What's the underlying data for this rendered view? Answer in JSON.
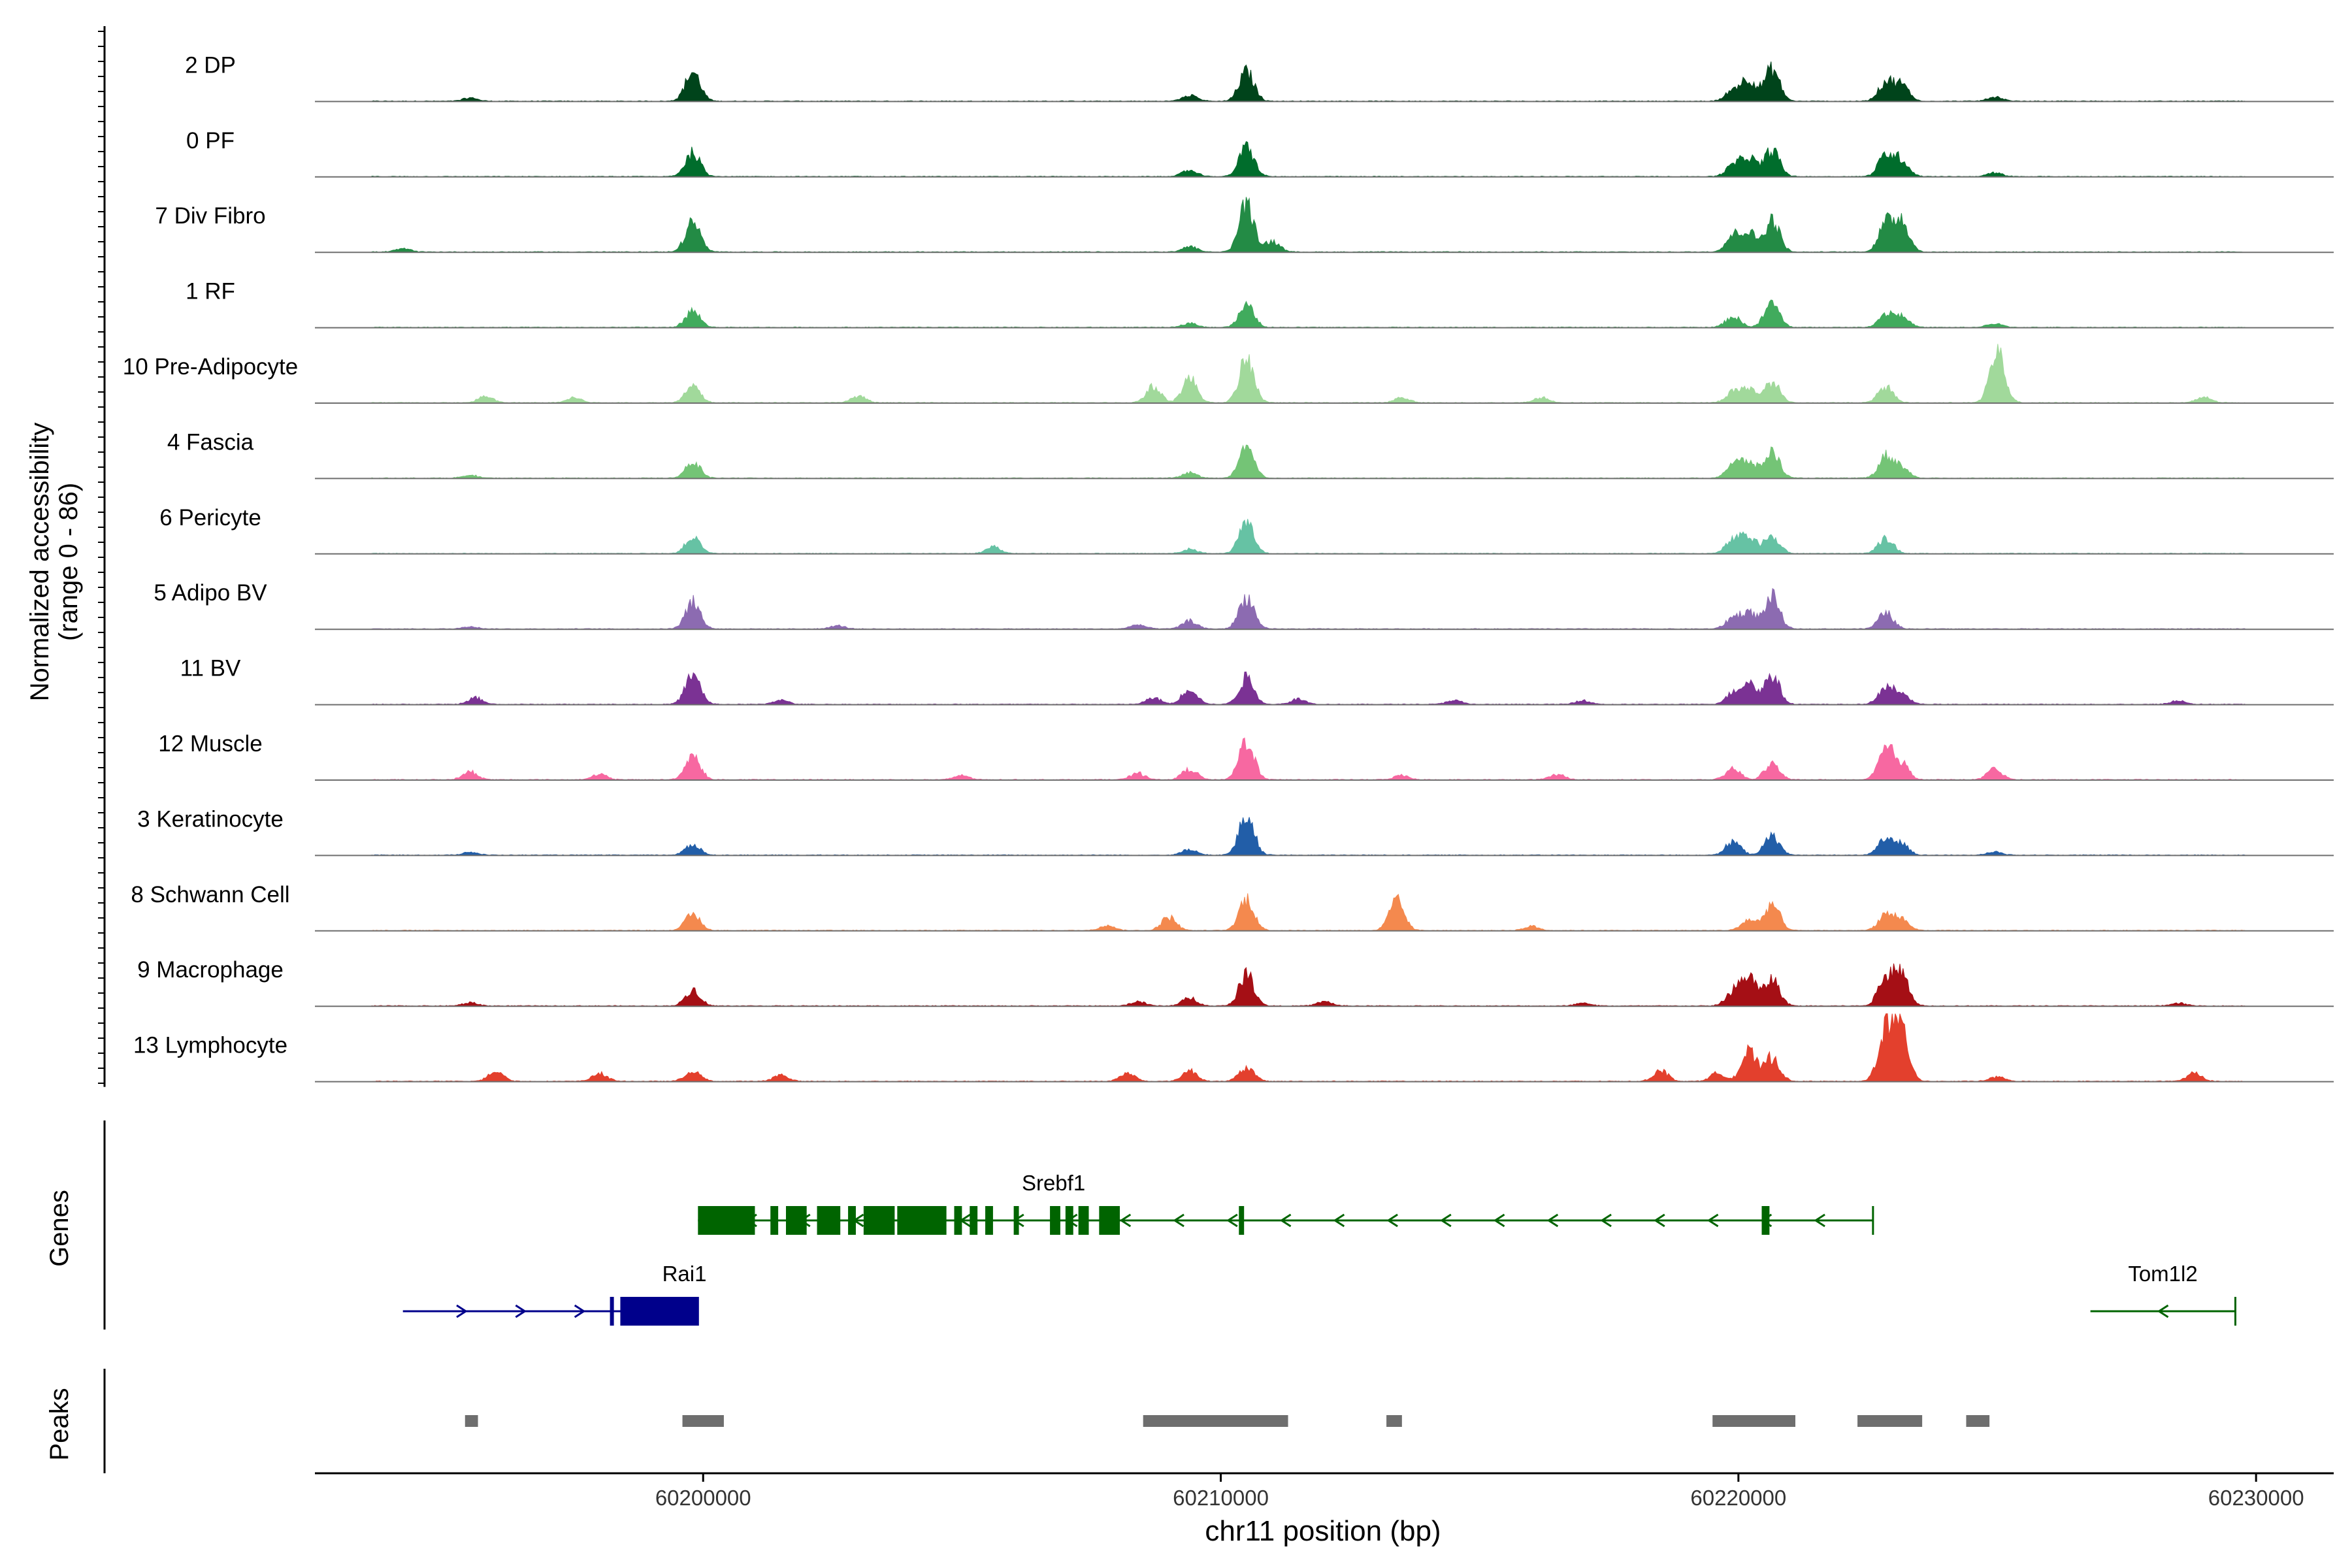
{
  "chart_data": {
    "type": "area",
    "title": "",
    "chromosome": "chr11",
    "xlabel": "chr11 position (bp)",
    "ylabel_line1": "Normalized accessibility",
    "ylabel_line2": "(range 0 - 86)",
    "xlim": [
      60192500,
      60231500
    ],
    "y_range": [
      0,
      86
    ],
    "x_ticks": [
      60200000,
      60210000,
      60220000,
      60230000
    ],
    "x_tick_labels": [
      "60200000",
      "60210000",
      "60220000",
      "60230000"
    ],
    "peak_positions": [
      60199800,
      60210500,
      60220200,
      60220650,
      60222850,
      60223150
    ],
    "tracks": [
      {
        "name": "2 DP",
        "color": "#00441b",
        "peaks": [
          [
            60199800,
            0.55
          ],
          [
            60210500,
            0.55
          ],
          [
            60219900,
            0.2
          ],
          [
            60220200,
            0.4
          ],
          [
            60220650,
            0.6
          ],
          [
            60222850,
            0.35
          ],
          [
            60223150,
            0.3
          ],
          [
            60209400,
            0.12
          ],
          [
            60224950,
            0.08
          ],
          [
            60195500,
            0.06
          ]
        ]
      },
      {
        "name": "0 PF",
        "color": "#006d2c",
        "peaks": [
          [
            60199800,
            0.45
          ],
          [
            60210500,
            0.55
          ],
          [
            60209400,
            0.12
          ],
          [
            60219900,
            0.2
          ],
          [
            60220200,
            0.35
          ],
          [
            60220650,
            0.5
          ],
          [
            60222850,
            0.4
          ],
          [
            60223150,
            0.3
          ],
          [
            60224950,
            0.07
          ]
        ]
      },
      {
        "name": "7 Div Fibro",
        "color": "#238b45",
        "peaks": [
          [
            60199800,
            0.55
          ],
          [
            60210500,
            0.9
          ],
          [
            60211000,
            0.2
          ],
          [
            60219900,
            0.3
          ],
          [
            60220200,
            0.35
          ],
          [
            60220650,
            0.6
          ],
          [
            60222850,
            0.5
          ],
          [
            60223150,
            0.6
          ],
          [
            60194200,
            0.06
          ],
          [
            60209400,
            0.1
          ]
        ]
      },
      {
        "name": "1 RF",
        "color": "#41ab5d",
        "peaks": [
          [
            60199800,
            0.3
          ],
          [
            60210500,
            0.4
          ],
          [
            60219900,
            0.2
          ],
          [
            60220650,
            0.45
          ],
          [
            60222850,
            0.25
          ],
          [
            60223150,
            0.2
          ],
          [
            60209400,
            0.08
          ],
          [
            60224950,
            0.07
          ]
        ]
      },
      {
        "name": "10 Pre-Adipocyte",
        "color": "#a1d99b",
        "peaks": [
          [
            60210500,
            0.8
          ],
          [
            60209400,
            0.45
          ],
          [
            60208700,
            0.3
          ],
          [
            60225000,
            0.95
          ],
          [
            60199800,
            0.3
          ],
          [
            60220650,
            0.4
          ],
          [
            60222850,
            0.3
          ],
          [
            60219900,
            0.2
          ],
          [
            60220200,
            0.25
          ],
          [
            60197500,
            0.1
          ],
          [
            60203000,
            0.12
          ],
          [
            60213500,
            0.1
          ],
          [
            60216200,
            0.1
          ],
          [
            60229000,
            0.1
          ],
          [
            60195800,
            0.12
          ]
        ]
      },
      {
        "name": "4 Fascia",
        "color": "#74c476",
        "peaks": [
          [
            60199800,
            0.3
          ],
          [
            60210500,
            0.55
          ],
          [
            60220650,
            0.5
          ],
          [
            60219900,
            0.25
          ],
          [
            60220200,
            0.3
          ],
          [
            60222850,
            0.4
          ],
          [
            60223150,
            0.2
          ],
          [
            60209400,
            0.1
          ],
          [
            60195500,
            0.06
          ]
        ]
      },
      {
        "name": "6 Pericyte",
        "color": "#66c2a4",
        "peaks": [
          [
            60199800,
            0.3
          ],
          [
            60210500,
            0.55
          ],
          [
            60219900,
            0.25
          ],
          [
            60220200,
            0.3
          ],
          [
            60220650,
            0.35
          ],
          [
            60222850,
            0.3
          ],
          [
            60205600,
            0.12
          ],
          [
            60209400,
            0.08
          ]
        ]
      },
      {
        "name": "5 Adipo BV",
        "color": "#8c6bb1",
        "peaks": [
          [
            60199800,
            0.5
          ],
          [
            60210500,
            0.6
          ],
          [
            60220650,
            0.6
          ],
          [
            60220200,
            0.3
          ],
          [
            60219900,
            0.2
          ],
          [
            60222850,
            0.3
          ],
          [
            60209400,
            0.15
          ],
          [
            60208400,
            0.08
          ],
          [
            60202600,
            0.06
          ],
          [
            60195500,
            0.05
          ]
        ]
      },
      {
        "name": "11 BV",
        "color": "#7b3294",
        "peaks": [
          [
            60199800,
            0.55
          ],
          [
            60210500,
            0.5
          ],
          [
            60220650,
            0.55
          ],
          [
            60220200,
            0.4
          ],
          [
            60219900,
            0.2
          ],
          [
            60222850,
            0.3
          ],
          [
            60223150,
            0.2
          ],
          [
            60209400,
            0.3
          ],
          [
            60208700,
            0.12
          ],
          [
            60195600,
            0.12
          ],
          [
            60211500,
            0.1
          ],
          [
            60214500,
            0.08
          ],
          [
            60217000,
            0.07
          ],
          [
            60228500,
            0.07
          ],
          [
            60201500,
            0.08
          ]
        ]
      },
      {
        "name": "12 Muscle",
        "color": "#f768a1",
        "peaks": [
          [
            60199800,
            0.45
          ],
          [
            60210500,
            0.75
          ],
          [
            60209400,
            0.2
          ],
          [
            60220650,
            0.3
          ],
          [
            60222850,
            0.55
          ],
          [
            60223150,
            0.3
          ],
          [
            60195500,
            0.15
          ],
          [
            60198000,
            0.1
          ],
          [
            60205000,
            0.08
          ],
          [
            60224950,
            0.2
          ],
          [
            60208400,
            0.12
          ],
          [
            60219900,
            0.2
          ],
          [
            60216500,
            0.1
          ],
          [
            60213500,
            0.08
          ]
        ]
      },
      {
        "name": "3 Keratinocyte",
        "color": "#225ea8",
        "peaks": [
          [
            60210500,
            0.75
          ],
          [
            60199800,
            0.2
          ],
          [
            60219900,
            0.25
          ],
          [
            60220650,
            0.35
          ],
          [
            60222850,
            0.3
          ],
          [
            60223150,
            0.2
          ],
          [
            60209400,
            0.1
          ],
          [
            60195500,
            0.06
          ],
          [
            60224950,
            0.06
          ]
        ]
      },
      {
        "name": "8 Schwann Cell",
        "color": "#f4894e",
        "peaks": [
          [
            60199800,
            0.3
          ],
          [
            60210500,
            0.6
          ],
          [
            60209000,
            0.25
          ],
          [
            60213400,
            0.55
          ],
          [
            60220650,
            0.5
          ],
          [
            60220200,
            0.2
          ],
          [
            60222850,
            0.3
          ],
          [
            60223150,
            0.2
          ],
          [
            60207800,
            0.1
          ],
          [
            60216000,
            0.08
          ]
        ]
      },
      {
        "name": "9 Macrophage",
        "color": "#a50f15",
        "peaks": [
          [
            60199800,
            0.3
          ],
          [
            60210500,
            0.6
          ],
          [
            60219900,
            0.25
          ],
          [
            60220200,
            0.55
          ],
          [
            60220650,
            0.5
          ],
          [
            60222850,
            0.55
          ],
          [
            60223150,
            0.6
          ],
          [
            60209400,
            0.15
          ],
          [
            60208400,
            0.08
          ],
          [
            60212000,
            0.08
          ],
          [
            60195500,
            0.06
          ],
          [
            60217000,
            0.06
          ],
          [
            60228500,
            0.05
          ]
        ]
      },
      {
        "name": "13 Lymphocyte",
        "color": "#e3402d",
        "peaks": [
          [
            60222850,
            1.0
          ],
          [
            60223150,
            0.95
          ],
          [
            60220200,
            0.55
          ],
          [
            60220650,
            0.45
          ],
          [
            60210500,
            0.25
          ],
          [
            60199800,
            0.2
          ],
          [
            60196000,
            0.2
          ],
          [
            60198000,
            0.15
          ],
          [
            60209400,
            0.2
          ],
          [
            60208200,
            0.15
          ],
          [
            60218500,
            0.2
          ],
          [
            60219600,
            0.15
          ],
          [
            60225000,
            0.08
          ],
          [
            60228800,
            0.15
          ],
          [
            60201500,
            0.12
          ]
        ]
      }
    ],
    "genes": [
      {
        "name": "Srebf1",
        "strand": "-",
        "color": "#006400",
        "start": 60199900,
        "end": 60222600,
        "row": 0,
        "exons": [
          [
            60199900,
            60201000
          ],
          [
            60201300,
            60201450
          ],
          [
            60201600,
            60202000
          ],
          [
            60202200,
            60202650
          ],
          [
            60202800,
            60202950
          ],
          [
            60203100,
            60203700
          ],
          [
            60203750,
            60204700
          ],
          [
            60204850,
            60205000
          ],
          [
            60205150,
            60205300
          ],
          [
            60205450,
            60205600
          ],
          [
            60206000,
            60206100
          ],
          [
            60206700,
            60206900
          ],
          [
            60207000,
            60207150
          ],
          [
            60207250,
            60207450
          ],
          [
            60207650,
            60208050
          ],
          [
            60210350,
            60210450
          ],
          [
            60220450,
            60220600
          ]
        ]
      },
      {
        "name": "Rai1",
        "strand": "+",
        "color": "#00008b",
        "start": 60194200,
        "end": 60199900,
        "row": 1,
        "exons": [
          [
            60198200,
            60198250
          ],
          [
            60198400,
            60199900
          ]
        ]
      },
      {
        "name": "Tom1l2",
        "strand": "-",
        "color": "#006400",
        "start": 60226800,
        "end": 60229600,
        "row": 1,
        "exons": []
      }
    ],
    "peaks_track": [
      [
        60195400,
        60195650
      ],
      [
        60199600,
        60200400
      ],
      [
        60208500,
        60211300
      ],
      [
        60213200,
        60213500
      ],
      [
        60219500,
        60221100
      ],
      [
        60222300,
        60223550
      ],
      [
        60224400,
        60224850
      ]
    ],
    "panel_labels": {
      "genes": "Genes",
      "peaks": "Peaks"
    },
    "peaks_color": "#6e6e6e"
  }
}
